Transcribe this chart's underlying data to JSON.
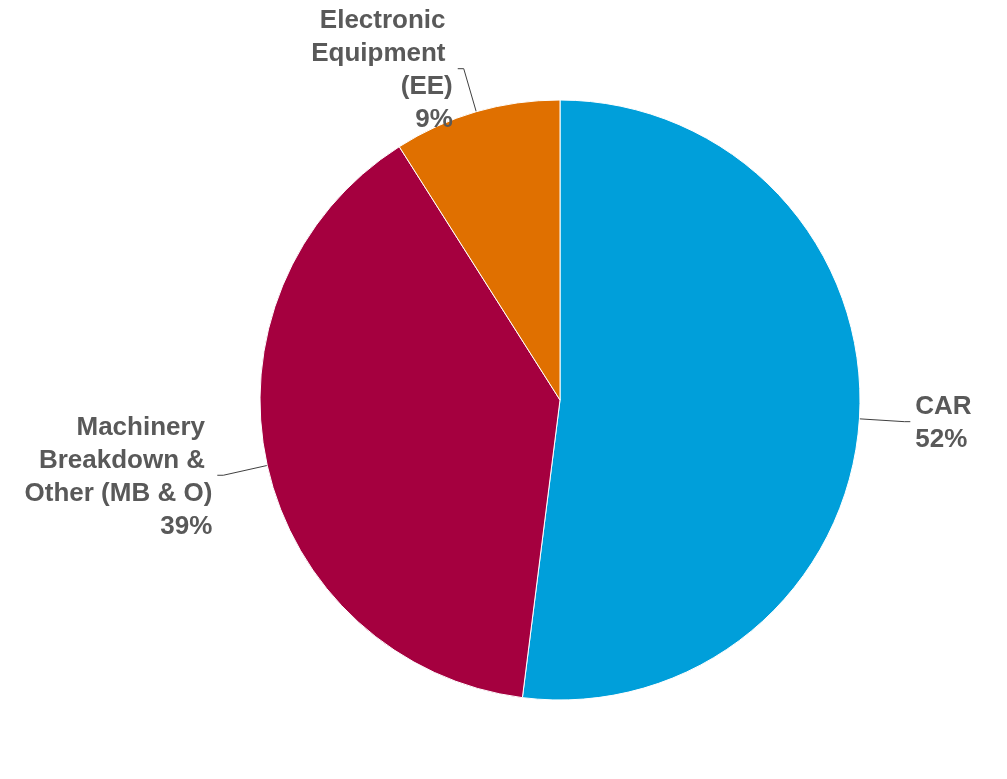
{
  "chart_data": {
    "type": "pie",
    "categories": [
      "CAR",
      "Machinery Breakdown & Other (MB & O)",
      "Electronic Equipment (EE)"
    ],
    "values": [
      52,
      39,
      9
    ],
    "colors": [
      "#009fda",
      "#a5003f",
      "#e07000"
    ],
    "value_labels": [
      "52%",
      "39%",
      "9%"
    ]
  }
}
